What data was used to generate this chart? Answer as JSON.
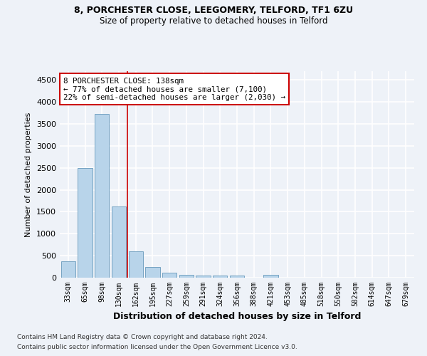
{
  "title1": "8, PORCHESTER CLOSE, LEEGOMERY, TELFORD, TF1 6ZU",
  "title2": "Size of property relative to detached houses in Telford",
  "xlabel": "Distribution of detached houses by size in Telford",
  "ylabel": "Number of detached properties",
  "bar_labels": [
    "33sqm",
    "65sqm",
    "98sqm",
    "130sqm",
    "162sqm",
    "195sqm",
    "227sqm",
    "259sqm",
    "291sqm",
    "324sqm",
    "356sqm",
    "388sqm",
    "421sqm",
    "453sqm",
    "485sqm",
    "518sqm",
    "550sqm",
    "582sqm",
    "614sqm",
    "647sqm",
    "679sqm"
  ],
  "bar_values": [
    375,
    2500,
    3720,
    1625,
    600,
    240,
    110,
    65,
    50,
    50,
    50,
    0,
    60,
    0,
    0,
    0,
    0,
    0,
    0,
    0,
    0
  ],
  "bar_color": "#b8d4ea",
  "bar_edge_color": "#6699bb",
  "vline_x": 3.5,
  "annotation_text": "8 PORCHESTER CLOSE: 138sqm\n← 77% of detached houses are smaller (7,100)\n22% of semi-detached houses are larger (2,030) →",
  "annotation_box_color": "#ffffff",
  "annotation_box_edge": "#cc0000",
  "vline_color": "#cc0000",
  "ylim": [
    0,
    4700
  ],
  "yticks": [
    0,
    500,
    1000,
    1500,
    2000,
    2500,
    3000,
    3500,
    4000,
    4500
  ],
  "footer1": "Contains HM Land Registry data © Crown copyright and database right 2024.",
  "footer2": "Contains public sector information licensed under the Open Government Licence v3.0.",
  "background_color": "#eef2f8",
  "grid_color": "#ffffff"
}
